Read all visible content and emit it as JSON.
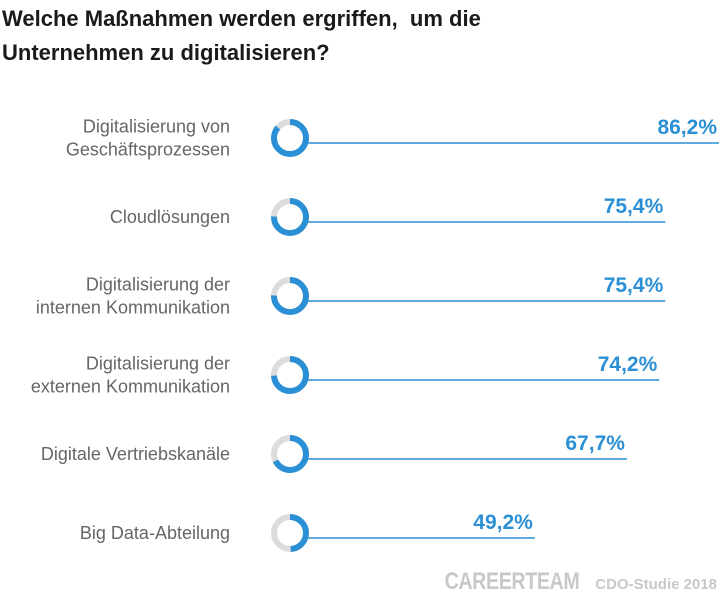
{
  "title": {
    "line1": "Welche Maßnahmen werden ergriffen,  um die",
    "line2": "Unternehmen zu digitalisieren?"
  },
  "chart_data": {
    "type": "bar",
    "title": "Welche Maßnahmen werden ergriffen,  um die Unternehmen zu digitalisieren?",
    "categories": [
      [
        "Digitalisierung von",
        "Geschäftsprozessen"
      ],
      [
        "Cloudlösungen"
      ],
      [
        "Digitalisierung der",
        "internen Kommunikation"
      ],
      [
        "Digitalisierung der",
        "externen Kommunikation"
      ],
      [
        "Digitale Vertriebskanäle"
      ],
      [
        "Big Data-Abteilung"
      ]
    ],
    "values": [
      86.2,
      75.4,
      75.4,
      74.2,
      67.7,
      49.2
    ],
    "value_labels": [
      "86,2%",
      "75,4%",
      "75,4%",
      "74,2%",
      "67,7%",
      "49,2%"
    ],
    "unit": "%",
    "ylim": [
      0,
      100
    ],
    "xlabel": "",
    "ylabel": "",
    "colors": {
      "accent": "#2a8fd4",
      "track": "#dcdcdc",
      "label": "#666666"
    }
  },
  "footer": {
    "brand": "CAREERTEAM",
    "study": "CDO-Studie 2018"
  }
}
